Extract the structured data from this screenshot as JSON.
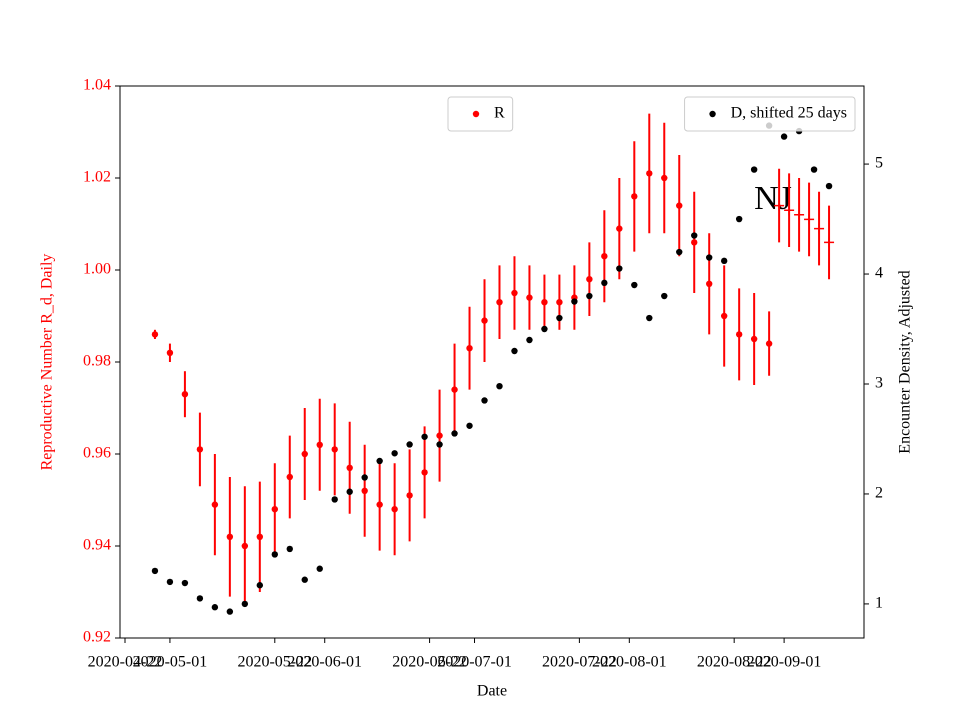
{
  "chart_data": {
    "type": "scatter",
    "xlabel": "Date",
    "ylabel": "Reproductive Number R_d, Daily",
    "y2label": "Encounter Density, Adjusted",
    "annotation": "NJ",
    "xlim": [
      "2020-04-21",
      "2020-09-17"
    ],
    "xticks": [
      "2020-04-22",
      "2020-05-01",
      "2020-05-22",
      "2020-06-01",
      "2020-06-22",
      "2020-07-01",
      "2020-07-22",
      "2020-08-01",
      "2020-08-22",
      "2020-09-01"
    ],
    "ylim": [
      0.92,
      1.04
    ],
    "yticks": [
      0.92,
      0.94,
      0.96,
      0.98,
      {
        "value": 1.0,
        "label": "1.00"
      },
      1.02,
      1.04
    ],
    "y2lim": [
      0.69,
      5.71
    ],
    "y2ticks": [
      1,
      2,
      3,
      4,
      5
    ],
    "ycolor": "#ff0000",
    "series": [
      {
        "name": "R",
        "color": "#ff0000",
        "marker": "dot",
        "legend_loc": "upper center",
        "x": [
          "2020-04-28",
          "2020-05-01",
          "2020-05-04",
          "2020-05-07",
          "2020-05-10",
          "2020-05-13",
          "2020-05-16",
          "2020-05-19",
          "2020-05-22",
          "2020-05-25",
          "2020-05-28",
          "2020-05-31",
          "2020-06-03",
          "2020-06-06",
          "2020-06-09",
          "2020-06-12",
          "2020-06-15",
          "2020-06-18",
          "2020-06-21",
          "2020-06-24",
          "2020-06-27",
          "2020-06-30",
          "2020-07-03",
          "2020-07-06",
          "2020-07-09",
          "2020-07-12",
          "2020-07-15",
          "2020-07-18",
          "2020-07-21",
          "2020-07-24",
          "2020-07-27",
          "2020-07-30",
          "2020-08-02",
          "2020-08-05",
          "2020-08-08",
          "2020-08-11",
          "2020-08-14",
          "2020-08-17",
          "2020-08-20",
          "2020-08-23",
          "2020-08-26",
          "2020-08-29"
        ],
        "values": [
          0.986,
          0.982,
          0.973,
          0.961,
          0.949,
          0.942,
          0.94,
          0.942,
          0.948,
          0.955,
          0.96,
          0.962,
          0.961,
          0.957,
          0.952,
          0.949,
          0.948,
          0.951,
          0.956,
          0.964,
          0.974,
          0.983,
          0.989,
          0.993,
          0.995,
          0.994,
          0.993,
          0.993,
          0.994,
          0.998,
          1.003,
          1.009,
          1.016,
          1.021,
          1.02,
          1.014,
          1.006,
          0.997,
          0.99,
          0.986,
          0.985,
          0.984
        ],
        "errors": [
          0.001,
          0.002,
          0.005,
          0.008,
          0.011,
          0.013,
          0.013,
          0.012,
          0.01,
          0.009,
          0.01,
          0.01,
          0.01,
          0.01,
          0.01,
          0.01,
          0.01,
          0.01,
          0.01,
          0.01,
          0.01,
          0.009,
          0.009,
          0.008,
          0.008,
          0.007,
          0.006,
          0.006,
          0.007,
          0.008,
          0.01,
          0.011,
          0.012,
          0.013,
          0.012,
          0.011,
          0.011,
          0.011,
          0.011,
          0.01,
          0.01,
          0.007
        ]
      },
      {
        "color": "#ff0000",
        "marker": "plus",
        "x": [
          "2020-08-31",
          "2020-09-02",
          "2020-09-04",
          "2020-09-06",
          "2020-09-08",
          "2020-09-10"
        ],
        "values": [
          1.014,
          1.013,
          1.012,
          1.011,
          1.009,
          1.006
        ],
        "errors": [
          0.008,
          0.008,
          0.008,
          0.008,
          0.008,
          0.008
        ]
      },
      {
        "name": "D, shifted 25 days",
        "color": "#000000",
        "marker": "dot",
        "axis": "y2",
        "legend_loc": "upper right",
        "x": [
          "2020-04-28",
          "2020-05-01",
          "2020-05-04",
          "2020-05-07",
          "2020-05-10",
          "2020-05-13",
          "2020-05-16",
          "2020-05-19",
          "2020-05-22",
          "2020-05-25",
          "2020-05-28",
          "2020-05-31",
          "2020-06-03",
          "2020-06-06",
          "2020-06-09",
          "2020-06-12",
          "2020-06-15",
          "2020-06-18",
          "2020-06-21",
          "2020-06-24",
          "2020-06-27",
          "2020-06-30",
          "2020-07-03",
          "2020-07-06",
          "2020-07-09",
          "2020-07-12",
          "2020-07-15",
          "2020-07-18",
          "2020-07-21",
          "2020-07-24",
          "2020-07-27",
          "2020-07-30",
          "2020-08-02",
          "2020-08-05",
          "2020-08-08",
          "2020-08-11",
          "2020-08-14",
          "2020-08-17",
          "2020-08-20",
          "2020-08-23",
          "2020-08-26",
          "2020-08-29",
          "2020-09-01",
          "2020-09-04",
          "2020-09-07",
          "2020-09-10"
        ],
        "values": [
          1.3,
          1.2,
          1.19,
          1.05,
          0.97,
          0.93,
          1.0,
          1.17,
          1.45,
          1.5,
          1.22,
          1.32,
          1.95,
          2.02,
          2.15,
          2.3,
          2.37,
          2.45,
          2.52,
          2.45,
          2.55,
          2.62,
          2.85,
          2.98,
          3.3,
          3.4,
          3.5,
          3.6,
          3.75,
          3.8,
          3.92,
          4.05,
          3.9,
          3.6,
          3.8,
          4.2,
          4.35,
          4.15,
          4.12,
          4.5,
          4.95,
          5.35,
          5.25,
          5.3,
          4.95,
          4.8
        ]
      }
    ]
  }
}
